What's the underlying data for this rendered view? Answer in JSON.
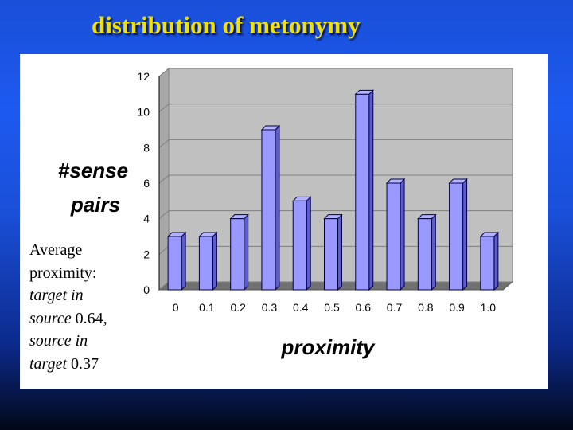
{
  "slide": {
    "title": "distribution of metonymy",
    "note": {
      "line1": "Average",
      "line2": "proximity:",
      "line3_italic": "target in",
      "line4_italic": "source",
      "line4_value": "0.64,",
      "line5_italic": "source in",
      "line6_italic": "target",
      "line6_value": "0.37"
    }
  },
  "chart_data": {
    "type": "bar",
    "categories": [
      "0",
      "0.1",
      "0.2",
      "0.3",
      "0.4",
      "0.5",
      "0.6",
      "0.7",
      "0.8",
      "0.9",
      "1.0"
    ],
    "values": [
      3,
      3,
      4,
      9,
      5,
      4,
      11,
      6,
      4,
      6,
      3
    ],
    "ylabel_line1": "#sense",
    "ylabel_line2": "pairs",
    "xlabel": "proximity",
    "ylim": [
      0,
      12
    ],
    "yticks": [
      0,
      2,
      4,
      6,
      8,
      10,
      12
    ],
    "grid": true,
    "legend": "none",
    "colors": {
      "bar_front": "#9999ff",
      "bar_top": "#b3b3ff",
      "bar_side": "#5c5ccc",
      "bar_outline": "#000044",
      "wall": "#c0c0c0",
      "floor": "#707070"
    }
  }
}
